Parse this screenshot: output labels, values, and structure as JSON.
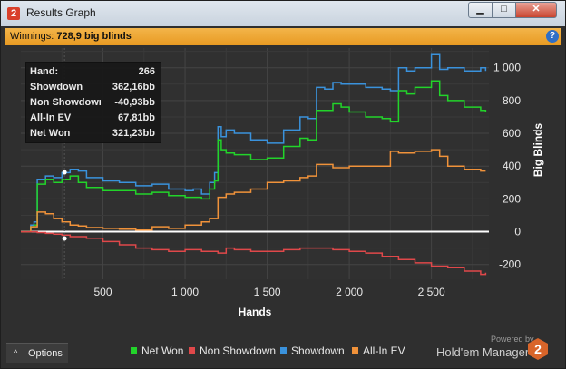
{
  "window": {
    "title": "Results Graph",
    "app_icon": "2",
    "minimize": "▁",
    "maximize": "□",
    "close": "✕"
  },
  "winnings": {
    "label": "Winnings:",
    "value": "728,9 big blinds"
  },
  "help_icon": "?",
  "stats": [
    {
      "label": "Hand:",
      "value": "266"
    },
    {
      "label": "Showdown",
      "value": "362,16bb"
    },
    {
      "label": "Non Showdown",
      "value": "-40,93bb"
    },
    {
      "label": "All-In EV",
      "value": "67,81bb"
    },
    {
      "label": "Net Won",
      "value": "321,23bb"
    }
  ],
  "options": {
    "label": "Options",
    "chevron": "^"
  },
  "legend": [
    {
      "name": "Net Won",
      "color": "#22d42a"
    },
    {
      "name": "Non Showdown",
      "color": "#e0484a"
    },
    {
      "name": "Showdown",
      "color": "#3a92dc"
    },
    {
      "name": "All-In EV",
      "color": "#f0923a"
    }
  ],
  "brand": {
    "powered": "Powered by",
    "name": "Hold'em Manager",
    "logo": "2"
  },
  "chart_data": {
    "type": "line",
    "xlabel": "Hands",
    "ylabel": "Big Blinds",
    "xlim": [
      0,
      2850
    ],
    "ylim": [
      -290,
      1120
    ],
    "x_ticks": [
      500,
      1000,
      1500,
      2000,
      2500
    ],
    "x_tick_labels": [
      "500",
      "1 000",
      "1 500",
      "2 000",
      "2 500"
    ],
    "y_ticks": [
      -200,
      0,
      200,
      400,
      600,
      800,
      1000
    ],
    "y_tick_labels": [
      "-200",
      "0",
      "200",
      "400",
      "600",
      "800",
      "1 000"
    ],
    "series": [
      {
        "name": "Showdown",
        "color": "#3a92dc",
        "x": [
          0,
          60,
          80,
          100,
          150,
          200,
          250,
          300,
          350,
          400,
          500,
          600,
          700,
          800,
          900,
          1000,
          1050,
          1100,
          1150,
          1180,
          1200,
          1220,
          1250,
          1300,
          1400,
          1500,
          1600,
          1700,
          1750,
          1800,
          1850,
          1900,
          1950,
          2000,
          2100,
          2200,
          2250,
          2300,
          2350,
          2400,
          2450,
          2500,
          2550,
          2600,
          2700,
          2800,
          2830
        ],
        "y": [
          0,
          40,
          60,
          320,
          340,
          330,
          360,
          380,
          370,
          330,
          310,
          300,
          280,
          290,
          260,
          250,
          260,
          230,
          300,
          360,
          640,
          580,
          620,
          600,
          560,
          540,
          620,
          700,
          690,
          880,
          870,
          910,
          900,
          900,
          880,
          870,
          860,
          1000,
          980,
          1000,
          1000,
          1080,
          990,
          1000,
          980,
          1000,
          980
        ]
      },
      {
        "name": "Net Won",
        "color": "#22d42a",
        "x": [
          0,
          60,
          80,
          100,
          150,
          200,
          250,
          300,
          350,
          400,
          500,
          600,
          700,
          800,
          900,
          1000,
          1050,
          1100,
          1150,
          1180,
          1200,
          1220,
          1250,
          1300,
          1400,
          1500,
          1600,
          1700,
          1750,
          1800,
          1850,
          1900,
          1950,
          2000,
          2100,
          2200,
          2250,
          2300,
          2350,
          2400,
          2450,
          2500,
          2550,
          2600,
          2700,
          2800,
          2830
        ],
        "y": [
          0,
          30,
          40,
          290,
          320,
          300,
          320,
          340,
          300,
          270,
          250,
          250,
          230,
          240,
          220,
          210,
          210,
          200,
          260,
          310,
          560,
          500,
          480,
          470,
          440,
          450,
          520,
          570,
          560,
          740,
          740,
          780,
          760,
          730,
          700,
          690,
          670,
          860,
          840,
          880,
          880,
          920,
          830,
          800,
          760,
          740,
          730
        ]
      },
      {
        "name": "All-In EV",
        "color": "#f0923a",
        "x": [
          0,
          60,
          100,
          150,
          200,
          250,
          300,
          350,
          400,
          500,
          600,
          700,
          800,
          900,
          1000,
          1100,
          1150,
          1200,
          1250,
          1300,
          1400,
          1500,
          1600,
          1700,
          1750,
          1800,
          1900,
          2000,
          2100,
          2200,
          2250,
          2300,
          2400,
          2500,
          2550,
          2600,
          2700,
          2800,
          2830
        ],
        "y": [
          0,
          30,
          120,
          110,
          80,
          60,
          40,
          35,
          25,
          20,
          15,
          10,
          30,
          20,
          40,
          60,
          80,
          210,
          230,
          240,
          260,
          300,
          310,
          330,
          340,
          410,
          390,
          400,
          400,
          400,
          490,
          480,
          490,
          500,
          460,
          400,
          380,
          370,
          370
        ]
      },
      {
        "name": "Non Showdown",
        "color": "#e0484a",
        "x": [
          0,
          50,
          100,
          150,
          200,
          250,
          300,
          400,
          500,
          600,
          700,
          800,
          900,
          1000,
          1100,
          1200,
          1250,
          1300,
          1400,
          1500,
          1600,
          1700,
          1800,
          1900,
          2000,
          2100,
          2200,
          2300,
          2400,
          2500,
          2600,
          2700,
          2800,
          2830
        ],
        "y": [
          0,
          0,
          -5,
          -10,
          -15,
          -20,
          -30,
          -40,
          -60,
          -80,
          -100,
          -110,
          -120,
          -110,
          -120,
          -130,
          -100,
          -110,
          -120,
          -120,
          -110,
          -100,
          -100,
          -110,
          -120,
          -130,
          -150,
          -170,
          -190,
          -210,
          -220,
          -240,
          -260,
          -250
        ]
      }
    ]
  }
}
